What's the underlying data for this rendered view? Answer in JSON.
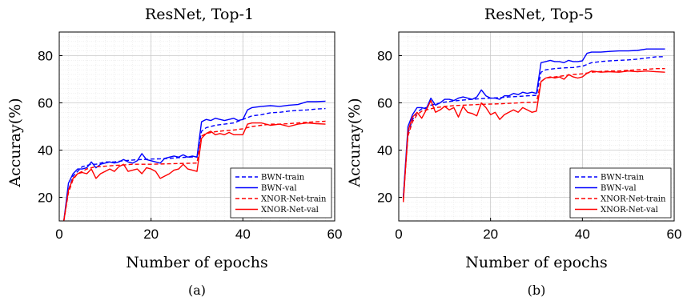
{
  "chart_data": [
    {
      "type": "line",
      "title": "ResNet, Top-1",
      "xlabel": "Number of epochs",
      "ylabel": "Accuray(%)",
      "caption": "(a)",
      "xlim": [
        0,
        60
      ],
      "ylim": [
        10,
        90
      ],
      "xticks": [
        0,
        20,
        40,
        60
      ],
      "yticks": [
        20,
        40,
        60,
        80
      ],
      "grid": true,
      "legend_position": "lower-right",
      "series": [
        {
          "name": "BWN-train",
          "color": "#0000ff",
          "dash": "dashed",
          "x": [
            1,
            2,
            3,
            4,
            5,
            6,
            7,
            8,
            9,
            10,
            12,
            14,
            16,
            18,
            20,
            22,
            24,
            26,
            28,
            30,
            31,
            32,
            34,
            36,
            38,
            40,
            42,
            44,
            46,
            48,
            50,
            52,
            54,
            56,
            58
          ],
          "y": [
            10,
            23,
            29,
            31,
            33,
            33.5,
            34,
            34,
            34.5,
            35,
            35,
            35.5,
            35.8,
            36,
            36.2,
            36.3,
            36.5,
            36.8,
            37,
            37.2,
            48,
            49.5,
            50.5,
            51,
            51.5,
            53,
            54.5,
            55,
            55.8,
            56,
            56.5,
            56.8,
            57,
            57.4,
            57.6
          ]
        },
        {
          "name": "BWN-val",
          "color": "#0000ff",
          "dash": "solid",
          "x": [
            1,
            2,
            3,
            4,
            5,
            6,
            7,
            8,
            9,
            10,
            11,
            12,
            13,
            14,
            15,
            16,
            17,
            18,
            19,
            20,
            21,
            22,
            23,
            24,
            25,
            26,
            27,
            28,
            29,
            30,
            31,
            32,
            33,
            34,
            35,
            36,
            37,
            38,
            39,
            40,
            41,
            42,
            44,
            46,
            48,
            50,
            52,
            54,
            56,
            58
          ],
          "y": [
            10,
            26,
            30,
            32,
            32,
            32.5,
            35,
            32.5,
            34,
            34.5,
            35,
            34.5,
            35,
            36,
            35,
            34.5,
            35.5,
            38.5,
            36,
            35.5,
            35,
            34.5,
            36.5,
            37,
            37.5,
            37,
            38,
            37,
            37.5,
            37,
            52,
            53,
            52.5,
            53.5,
            53,
            52.5,
            53,
            53.5,
            52.5,
            53,
            57,
            58,
            58.5,
            58.8,
            58.5,
            59,
            59.3,
            60.5,
            60.5,
            60.7
          ]
        },
        {
          "name": "XNOR-Net-train",
          "color": "#ff0000",
          "dash": "dashed",
          "x": [
            1,
            2,
            3,
            4,
            5,
            6,
            7,
            8,
            9,
            10,
            12,
            14,
            16,
            18,
            20,
            22,
            24,
            26,
            28,
            30,
            31,
            32,
            34,
            36,
            38,
            40,
            42,
            44,
            46,
            48,
            50,
            52,
            54,
            56,
            58
          ],
          "y": [
            10,
            22,
            27.5,
            30,
            31,
            32,
            32.5,
            33,
            33,
            33.2,
            33.5,
            33.7,
            34,
            34,
            34,
            34.1,
            34.2,
            34.3,
            34.4,
            34.5,
            46,
            47,
            47.8,
            48.2,
            48.5,
            49,
            50,
            50.5,
            51,
            51,
            51.2,
            51.5,
            51.8,
            52,
            52.2
          ]
        },
        {
          "name": "XNOR-Net-val",
          "color": "#ff0000",
          "dash": "solid",
          "x": [
            1,
            2,
            3,
            4,
            5,
            6,
            7,
            8,
            9,
            10,
            11,
            12,
            13,
            14,
            15,
            16,
            17,
            18,
            19,
            20,
            21,
            22,
            23,
            24,
            25,
            26,
            27,
            28,
            29,
            30,
            31,
            32,
            33,
            34,
            35,
            36,
            37,
            38,
            39,
            40,
            41,
            42,
            44,
            46,
            48,
            50,
            52,
            54,
            56,
            58
          ],
          "y": [
            10,
            23,
            28,
            30,
            30.5,
            30,
            32,
            28,
            30,
            31,
            32,
            31,
            33,
            34,
            31,
            31.5,
            32,
            30,
            32.5,
            32,
            31,
            28,
            29,
            30,
            31.5,
            32,
            34,
            32,
            31.5,
            31,
            45,
            47,
            48,
            46.5,
            47,
            46.5,
            47.5,
            46.5,
            46.5,
            46.5,
            51,
            51.5,
            51.5,
            50.5,
            51,
            50,
            51,
            51.5,
            51.2,
            51
          ]
        }
      ]
    },
    {
      "type": "line",
      "title": "ResNet, Top-5",
      "xlabel": "Number of epochs",
      "ylabel": "Accuray(%)",
      "caption": "(b)",
      "xlim": [
        0,
        60
      ],
      "ylim": [
        10,
        90
      ],
      "xticks": [
        0,
        20,
        40,
        60
      ],
      "yticks": [
        20,
        40,
        60,
        80
      ],
      "grid": true,
      "legend_position": "lower-right",
      "series": [
        {
          "name": "BWN-train",
          "color": "#0000ff",
          "dash": "dashed",
          "x": [
            1,
            2,
            3,
            4,
            5,
            6,
            7,
            8,
            9,
            10,
            12,
            14,
            16,
            18,
            20,
            22,
            24,
            26,
            28,
            30,
            31,
            32,
            34,
            36,
            38,
            40,
            42,
            44,
            46,
            48,
            50,
            52,
            54,
            56,
            58
          ],
          "y": [
            20,
            47,
            53,
            56,
            57.5,
            58,
            59,
            59.5,
            60,
            60.3,
            60.8,
            61.2,
            61.5,
            61.8,
            62,
            62.2,
            62.5,
            62.7,
            63,
            63.2,
            73,
            74,
            74.5,
            74.8,
            75,
            75.5,
            77,
            77.5,
            77.8,
            78,
            78.2,
            78.5,
            79,
            79.5,
            79.6
          ]
        },
        {
          "name": "BWN-val",
          "color": "#0000ff",
          "dash": "solid",
          "x": [
            1,
            2,
            3,
            4,
            5,
            6,
            7,
            8,
            9,
            10,
            11,
            12,
            13,
            14,
            15,
            16,
            17,
            18,
            19,
            20,
            21,
            22,
            23,
            24,
            25,
            26,
            27,
            28,
            29,
            30,
            31,
            32,
            33,
            34,
            35,
            36,
            37,
            38,
            39,
            40,
            41,
            42,
            44,
            46,
            48,
            50,
            52,
            54,
            56,
            58
          ],
          "y": [
            20,
            50,
            55,
            58,
            58,
            57.5,
            62,
            59,
            60,
            61.5,
            61.5,
            61,
            62,
            62.5,
            62,
            61.5,
            62.5,
            65.5,
            63,
            62,
            62,
            61.5,
            63,
            63,
            64,
            63.5,
            64.5,
            64,
            64.5,
            64,
            77,
            77.5,
            78,
            77.5,
            77.5,
            77,
            78,
            77.5,
            77.5,
            77.8,
            81,
            81.5,
            81.5,
            81.8,
            82,
            82,
            82.2,
            82.8,
            82.8,
            82.8
          ]
        },
        {
          "name": "XNOR-Net-train",
          "color": "#ff0000",
          "dash": "dashed",
          "x": [
            1,
            2,
            3,
            4,
            5,
            6,
            7,
            8,
            9,
            10,
            12,
            14,
            16,
            18,
            20,
            22,
            24,
            26,
            28,
            30,
            31,
            32,
            34,
            36,
            38,
            40,
            42,
            44,
            46,
            48,
            50,
            52,
            54,
            56,
            58
          ],
          "y": [
            19,
            46,
            52,
            55,
            56.5,
            57,
            57.5,
            58,
            58.2,
            58.5,
            58.8,
            59,
            59.2,
            59.4,
            59.5,
            59.6,
            59.8,
            60,
            60.2,
            60.3,
            69,
            70.5,
            71,
            71.5,
            72,
            72.3,
            73,
            73.3,
            73.5,
            73.5,
            73.8,
            74,
            74.2,
            74.5,
            74.5
          ]
        },
        {
          "name": "XNOR-Net-val",
          "color": "#ff0000",
          "dash": "solid",
          "x": [
            1,
            2,
            3,
            4,
            5,
            6,
            7,
            8,
            9,
            10,
            11,
            12,
            13,
            14,
            15,
            16,
            17,
            18,
            19,
            20,
            21,
            22,
            23,
            24,
            25,
            26,
            27,
            28,
            29,
            30,
            31,
            32,
            33,
            34,
            35,
            36,
            37,
            38,
            39,
            40,
            41,
            42,
            44,
            46,
            48,
            50,
            52,
            54,
            56,
            58
          ],
          "y": [
            18,
            48,
            54,
            56,
            53.5,
            57,
            61,
            56,
            57,
            58.5,
            57,
            58,
            54,
            58.5,
            56,
            55.5,
            54.5,
            60,
            58,
            55,
            56,
            53,
            55,
            56,
            57,
            56,
            58,
            57,
            56,
            56.5,
            69,
            70.5,
            71,
            70.5,
            71,
            70,
            72,
            71,
            70.5,
            71,
            72.5,
            73.5,
            73,
            73.2,
            73,
            73.5,
            73.2,
            73.5,
            73.2,
            73
          ]
        }
      ]
    }
  ]
}
